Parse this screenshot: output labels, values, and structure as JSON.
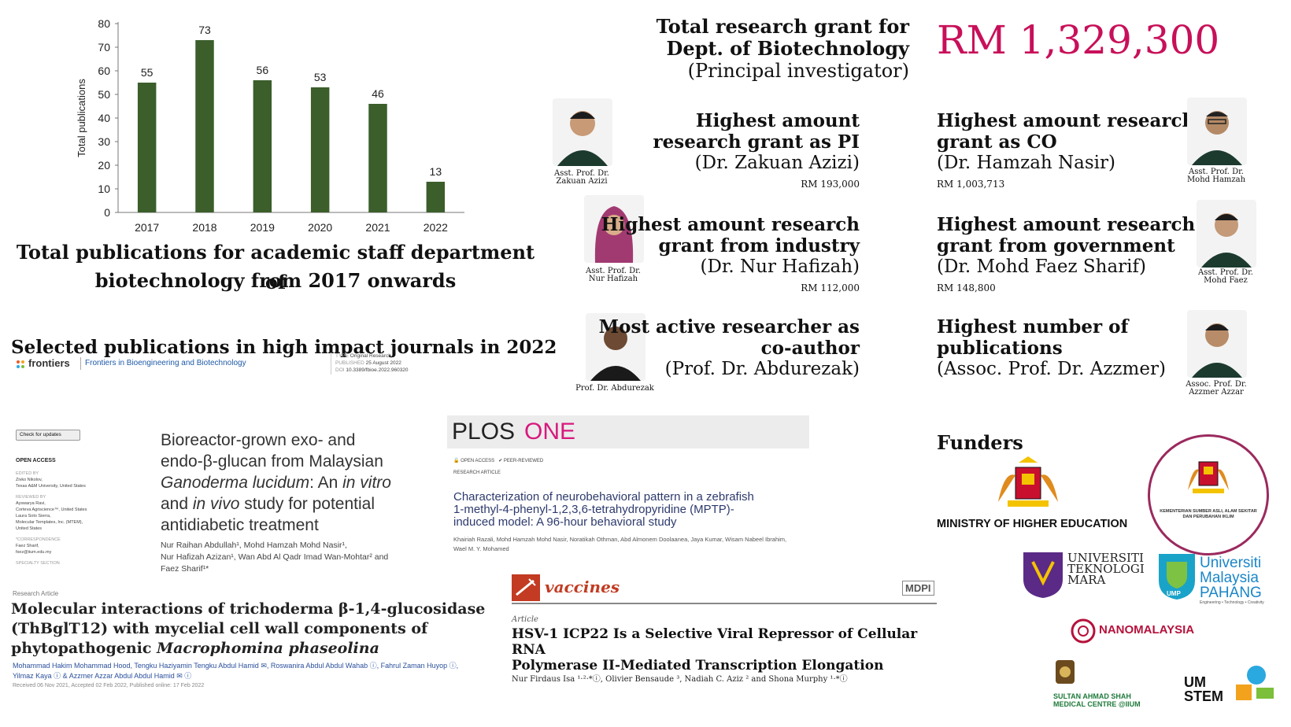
{
  "chart_data": {
    "type": "bar",
    "categories": [
      "2017",
      "2018",
      "2019",
      "2020",
      "2021",
      "2022"
    ],
    "values": [
      55,
      73,
      56,
      53,
      46,
      13
    ],
    "ylabel": "Total publications",
    "ylim": [
      0,
      80
    ],
    "yticks": [
      "0",
      "10",
      "20",
      "30",
      "40",
      "50",
      "60",
      "70",
      "80"
    ],
    "bar_color": "#3b5e2b",
    "grid": false
  },
  "pub_caption_line1": "Total publications for academic staff department of",
  "pub_caption_line2": "biotechnology from 2017 onwards",
  "selected_heading": "Selected publications in high impact journals in 2022",
  "grant": {
    "title_line1": "Total research grant  for",
    "title_line2": "Dept. of Biotechnology",
    "title_line3": "(Principal investigator)",
    "amount": "RM 1,329,300"
  },
  "awards": {
    "pi": {
      "t1": "Highest amount",
      "t2": "research grant as PI",
      "name": "(Dr. Zakuan Azizi)",
      "amount": "RM 193,000",
      "cap1": "Asst. Prof. Dr.",
      "cap2": "Zakuan Azizi"
    },
    "co": {
      "t1": "Highest amount research",
      "t2": "grant as CO",
      "name": "(Dr. Hamzah Nasir)",
      "amount": "RM 1,003,713",
      "cap1": "Asst. Prof. Dr.",
      "cap2": "Mohd Hamzah"
    },
    "industry": {
      "t1": "Highest amount research",
      "t2": "grant from industry",
      "name": "(Dr. Nur Hafizah)",
      "amount": "RM 112,000",
      "cap1": "Asst. Prof. Dr.",
      "cap2": "Nur Hafizah"
    },
    "gov": {
      "t1": "Highest amount research",
      "t2": "grant from government",
      "name": "(Dr. Mohd Faez Sharif)",
      "amount": "RM 148,800",
      "cap1": "Asst. Prof. Dr.",
      "cap2": "Mohd Faez"
    },
    "coauthor": {
      "t1": "Most active researcher as",
      "t2": "co-author",
      "name": "(Prof. Dr. Abdurezak)",
      "cap1": "Prof. Dr. Abdurezak"
    },
    "pubs": {
      "t1": "Highest number of",
      "t2": "publications",
      "name": "(Assoc. Prof. Dr. Azzmer)",
      "cap1": "Assoc. Prof. Dr.",
      "cap2": "Azzmer Azzar"
    }
  },
  "frontiers": {
    "brand": "frontiers",
    "journal": "Frontiers in Bioengineering and Biotechnology",
    "type_label": "TYPE",
    "type": "Original Research",
    "published_label": "PUBLISHED",
    "published": "25 August 2022",
    "doi_label": "DOI",
    "doi": "10.3389/fbioe.2022.960320",
    "check": "Check for updates",
    "open_access": "OPEN ACCESS",
    "edited_by": "EDITED BY",
    "editor": "Zivko Nikolov,",
    "editor_aff": "Texas A&M University, United States",
    "reviewed_by": "REVIEWED BY",
    "reviewers": [
      "Ayswarya Ravi,",
      "Corteva Agriscience™, United States",
      "Laura Soto Sierra,",
      "Molecular Templates, Inc. (MTEM),",
      "United States"
    ],
    "correspondence": "*CORRESPONDENCE",
    "corr_name": "Faez Sharif,",
    "corr_email": "fsez@iium.edu.my",
    "specialty": "SPECIALTY SECTION",
    "title_l1": "Bioreactor-grown exo- and",
    "title_l2": "endo-β-glucan from Malaysian",
    "title_l3a": "Ganoderma lucidum",
    "title_l3b": ": An ",
    "title_l3c": "in vitro",
    "title_l4a": "and ",
    "title_l4b": "in vivo",
    "title_l4c": " study for potential",
    "title_l5": "antidiabetic treatment",
    "authors_l1": "Nur Raihan Abdullah¹, Mohd Hamzah Mohd Nasir¹,",
    "authors_l2": "Nur Hafizah Azizan¹, Wan Abd Al Qadr Imad Wan-Mohtar² and",
    "authors_l3": "Faez Sharif¹*"
  },
  "paper2": {
    "kind": "Research Article",
    "title_l1": "Molecular interactions of trichoderma β-1,4-glucosidase",
    "title_l2": "(ThBglT12) with mycelial cell wall components of",
    "title_l3a": "phytopathogenic ",
    "title_l3b": "Macrophomina phaseolina",
    "authors_l1": "Mohammad Hakim Mohammad Hood, Tengku Haziyamin Tengku Abdul Hamid ✉, Roswanira Abdul Abdul Wahab ⓘ, Fahrul Zaman Huyop ⓘ,",
    "authors_l2": "Yilmaz Kaya ⓘ & Azzmer Azzar Abdul Abdul Hamid ✉ ⓘ",
    "dates": "Received 06 Nov 2021, Accepted 02 Feb 2022, Published online: 17 Feb 2022"
  },
  "plos": {
    "logo_a": "PLOS",
    "logo_b": "ONE",
    "open_access": "OPEN ACCESS",
    "peer": "PEER-REVIEWED",
    "kind": "RESEARCH ARTICLE",
    "title_l1": "Characterization of neurobehavioral pattern in a zebrafish",
    "title_l2": "1-methyl-4-phenyl-1,2,3,6-tetrahydropyridine (MPTP)-",
    "title_l3": "induced model: A 96-hour behavioral study",
    "authors_l1": "Khairiah Razali, Mohd Hamzah Mohd Nasir, Noratikah Othman, Abd Almonem Doolaanea, Jaya Kumar, Wisam Nabeel Ibrahim,",
    "authors_l2": "Wael M. Y. Mohamed"
  },
  "vaccines": {
    "journal": "vaccines",
    "publisher": "MDPI",
    "kind": "Article",
    "title_l1": "HSV-1 ICP22 Is a Selective Viral Repressor of Cellular RNA",
    "title_l2": "Polymerase II-Mediated Transcription Elongation",
    "authors": "Nur Firdaus Isa ¹·²·*ⓘ, Olivier Bensaude ³, Nadiah C. Aziz ² and Shona Murphy ¹·*ⓘ"
  },
  "funders": {
    "heading": "Funders",
    "moe": "MINISTRY OF HIGHER EDUCATION",
    "kasa_l1": "KEMENTERIAN SUMBER ASLI, ALAM SEKITAR",
    "kasa_l2": "DAN PERUBAHAN IKLIM",
    "uitm_l1": "UNIVERSITI",
    "uitm_l2": "TEKNOLOGI",
    "uitm_l3": "MARA",
    "ump_l1": "Universiti",
    "ump_l2": "Malaysia",
    "ump_l3": "PAHANG",
    "ump_tag": "Engineering • Technology • Creativity",
    "ump_abbr": "UMP",
    "nano": "NANOMALAYSIA",
    "sash_l1": "SULTAN AHMAD SHAH",
    "sash_l2": "MEDICAL CENTRE @IIUM",
    "umstem_l1": "UM",
    "umstem_l2": "STEM"
  }
}
